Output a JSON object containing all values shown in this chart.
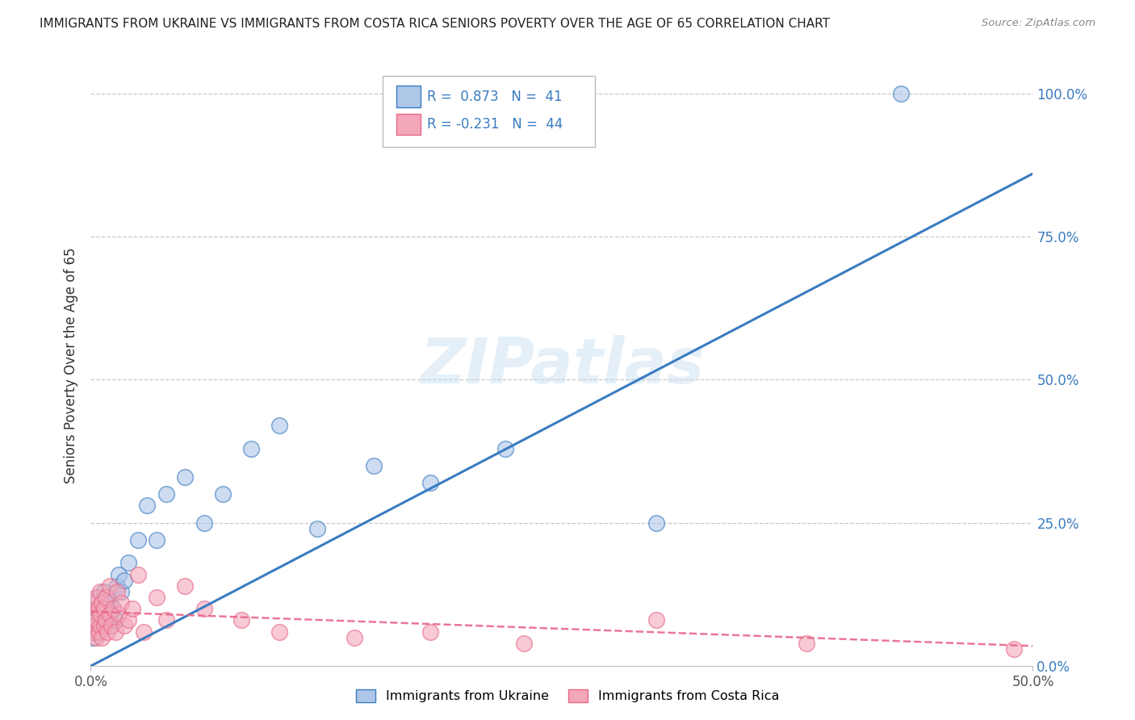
{
  "title": "IMMIGRANTS FROM UKRAINE VS IMMIGRANTS FROM COSTA RICA SENIORS POVERTY OVER THE AGE OF 65 CORRELATION CHART",
  "source": "Source: ZipAtlas.com",
  "ylabel": "Seniors Poverty Over the Age of 65",
  "xlabel_ukraine": "Immigrants from Ukraine",
  "xlabel_costarica": "Immigrants from Costa Rica",
  "xlim": [
    0.0,
    0.5
  ],
  "ylim": [
    0.0,
    1.05
  ],
  "ukraine_R": 0.873,
  "ukraine_N": 41,
  "costarica_R": -0.231,
  "costarica_N": 44,
  "ukraine_color": "#aec6e8",
  "costarica_color": "#f4a7b9",
  "ukraine_line_color": "#3a7cc1",
  "costarica_line_color": "#e8688a",
  "background_color": "#ffffff",
  "watermark": "ZIPatlas",
  "ukraine_x": [
    0.001,
    0.002,
    0.002,
    0.003,
    0.003,
    0.004,
    0.004,
    0.005,
    0.005,
    0.006,
    0.006,
    0.007,
    0.007,
    0.008,
    0.008,
    0.009,
    0.01,
    0.01,
    0.011,
    0.012,
    0.013,
    0.014,
    0.015,
    0.016,
    0.018,
    0.02,
    0.025,
    0.03,
    0.035,
    0.04,
    0.05,
    0.06,
    0.07,
    0.085,
    0.1,
    0.12,
    0.15,
    0.18,
    0.22,
    0.3,
    0.43
  ],
  "ukraine_y": [
    0.05,
    0.08,
    0.06,
    0.1,
    0.07,
    0.09,
    0.12,
    0.06,
    0.08,
    0.07,
    0.11,
    0.09,
    0.13,
    0.08,
    0.1,
    0.12,
    0.09,
    0.11,
    0.07,
    0.1,
    0.08,
    0.14,
    0.16,
    0.13,
    0.15,
    0.18,
    0.22,
    0.28,
    0.22,
    0.3,
    0.33,
    0.25,
    0.3,
    0.38,
    0.42,
    0.24,
    0.35,
    0.32,
    0.38,
    0.25,
    1.0
  ],
  "costarica_x": [
    0.001,
    0.001,
    0.002,
    0.002,
    0.003,
    0.003,
    0.003,
    0.004,
    0.004,
    0.005,
    0.005,
    0.005,
    0.006,
    0.006,
    0.007,
    0.007,
    0.008,
    0.008,
    0.009,
    0.01,
    0.01,
    0.011,
    0.012,
    0.013,
    0.014,
    0.015,
    0.016,
    0.018,
    0.02,
    0.022,
    0.025,
    0.028,
    0.035,
    0.04,
    0.05,
    0.06,
    0.08,
    0.1,
    0.14,
    0.18,
    0.23,
    0.3,
    0.38,
    0.49
  ],
  "costarica_y": [
    0.06,
    0.09,
    0.07,
    0.11,
    0.05,
    0.08,
    0.12,
    0.06,
    0.1,
    0.07,
    0.09,
    0.13,
    0.05,
    0.11,
    0.07,
    0.1,
    0.08,
    0.12,
    0.06,
    0.09,
    0.14,
    0.07,
    0.1,
    0.06,
    0.13,
    0.09,
    0.11,
    0.07,
    0.08,
    0.1,
    0.16,
    0.06,
    0.12,
    0.08,
    0.14,
    0.1,
    0.08,
    0.06,
    0.05,
    0.06,
    0.04,
    0.08,
    0.04,
    0.03
  ],
  "ukraine_line_slope": 1.72,
  "ukraine_line_intercept": 0.0,
  "costarica_line_slope": -0.12,
  "costarica_line_intercept": 0.095
}
